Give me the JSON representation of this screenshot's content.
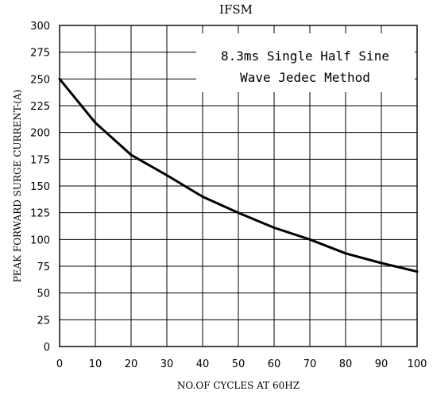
{
  "chart_data": {
    "type": "line",
    "title": "IFSM",
    "xlabel": "NO.OF CYCLES AT 60HZ",
    "ylabel": "PEAK FORWARD SURGE CURRENT-(A)",
    "xlim": [
      0,
      100
    ],
    "ylim": [
      0,
      300
    ],
    "xticks": [
      "0",
      "10",
      "20",
      "30",
      "40",
      "50",
      "60",
      "70",
      "80",
      "90",
      "100"
    ],
    "yticks": [
      "0",
      "25",
      "50",
      "75",
      "100",
      "125",
      "150",
      "175",
      "200",
      "225",
      "250",
      "275",
      "300"
    ],
    "grid": true,
    "annotation": [
      "8.3ms Single Half Sine",
      "Wave Jedec Method"
    ],
    "series": [
      {
        "x": [
          0,
          10,
          20,
          30,
          40,
          50,
          60,
          70,
          80,
          90,
          100
        ],
        "y": [
          250,
          209,
          179,
          160,
          140,
          125,
          111,
          100,
          87,
          78,
          70
        ]
      }
    ]
  }
}
